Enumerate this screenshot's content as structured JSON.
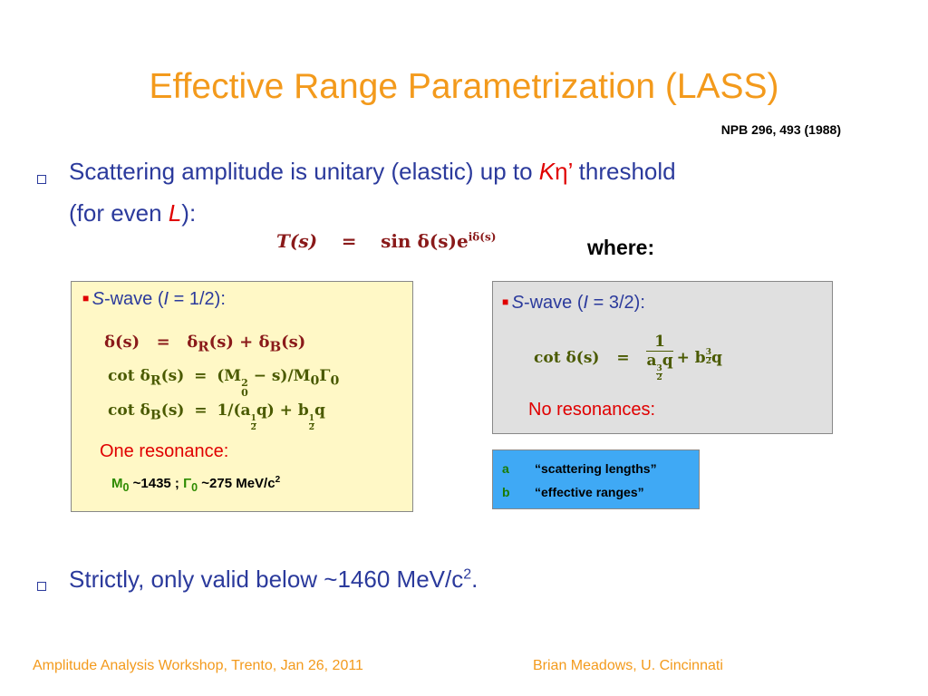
{
  "title": "Effective Range Parametrization (LASS)",
  "reference": "NPB 296, 493 (1988)",
  "bullet1": [
    "Scattering amplitude is unitary (elastic) up to ",
    "K",
    "η",
    "’",
    " threshold",
    "(for even ",
    "L",
    "):"
  ],
  "main_formula": [
    "T(s)",
    "=",
    "sin δ(s)e",
    "iδ(s)"
  ],
  "where": "where:",
  "left_box": {
    "heading": [
      "S",
      "-wave (",
      "I",
      " = 1/2):"
    ],
    "row1": [
      "δ(s)",
      "=",
      "δ",
      "R",
      "(s) + δ",
      "B",
      "(s)"
    ],
    "row2": [
      "cot δ",
      "R",
      "(s)",
      "=",
      "(M",
      "2",
      "0",
      " − s)/M",
      "0",
      "Γ",
      "0"
    ],
    "row3": [
      "cot δ",
      "B",
      "(s)",
      "=",
      "1/(a",
      "1",
      "2",
      "q) + b",
      "1",
      "2",
      "q"
    ],
    "note": "One resonance:",
    "values": [
      "M",
      "0",
      " ~1435 ; ",
      "Γ",
      "0",
      " ~275 MeV/c",
      "2"
    ]
  },
  "right_box": {
    "heading": [
      "S",
      "-wave (",
      "I",
      " = 3/2):"
    ],
    "formula": [
      "cot δ(s)",
      "=",
      "1",
      "a",
      "3",
      "2",
      "q",
      "+ b",
      "3",
      "2",
      "q"
    ],
    "note": "No resonances:"
  },
  "legend": [
    [
      "a",
      "“scattering lengths”"
    ],
    [
      "b",
      "“effective ranges”"
    ]
  ],
  "bullet2": [
    "Strictly, only valid below ~1460 MeV/c",
    "2",
    "."
  ],
  "footer": {
    "left": "Amplitude Analysis Workshop, Trento, Jan 26, 2011",
    "right": "Brian Meadows, U. Cincinnati"
  }
}
